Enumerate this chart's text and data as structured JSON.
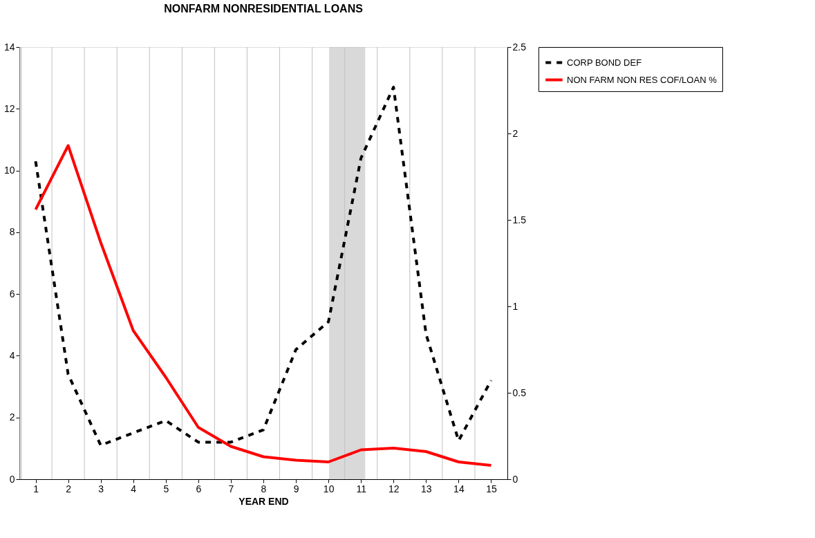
{
  "chart_data": {
    "type": "line",
    "title": "NONFARM NONRESIDENTIAL LOANS",
    "xlabel": "YEAR END",
    "x": [
      1,
      2,
      3,
      4,
      5,
      6,
      7,
      8,
      9,
      10,
      11,
      12,
      13,
      14,
      15
    ],
    "xlim": [
      0.5,
      15.5
    ],
    "xticks": [
      1,
      {
        "value": 1.5,
        "label": null
      },
      2,
      {
        "value": 2.5,
        "label": null
      },
      3,
      {
        "value": 3.5,
        "label": null
      },
      4,
      {
        "value": 4.5,
        "label": null
      },
      5,
      {
        "value": 5.5,
        "label": null
      },
      6,
      {
        "value": 6.5,
        "label": null
      },
      7,
      {
        "value": 7.5,
        "label": null
      },
      8,
      {
        "value": 8.5,
        "label": null
      },
      9,
      {
        "value": 9.5,
        "label": null
      },
      10,
      {
        "value": 10.5,
        "label": null
      },
      11,
      {
        "value": 11.5,
        "label": null
      },
      12,
      {
        "value": 12.5,
        "label": null
      },
      13,
      {
        "value": 13.5,
        "label": null
      },
      14,
      {
        "value": 14.5,
        "label": null
      },
      15
    ],
    "ylim": [
      0,
      14
    ],
    "yticks": [
      0,
      2,
      4,
      6,
      8,
      10,
      12,
      14
    ],
    "y2lim": [
      0,
      2.5
    ],
    "y2ticks": [
      0,
      0.5,
      1,
      1.5,
      2,
      2.5
    ],
    "grid": "x",
    "legend": "right",
    "series": [
      {
        "name": "CORP BOND DEF",
        "color": "#000000",
        "line_style": "dashed",
        "values": [
          10.3,
          3.4,
          1.1,
          1.5,
          1.9,
          1.2,
          1.2,
          1.6,
          4.2,
          5.1,
          10.4,
          12.7,
          4.7,
          1.25,
          3.2
        ]
      },
      {
        "name": "NON FARM NON RES COF/LOAN %",
        "color": "#ff0000",
        "line_style": "solid",
        "axis": "y2",
        "values": [
          1.56,
          1.93,
          1.37,
          0.86,
          0.59,
          0.3,
          0.19,
          0.13,
          0.11,
          0.1,
          0.17,
          0.18,
          0.16,
          0.1,
          0.08
        ]
      }
    ],
    "bands": [
      {
        "axis": "x",
        "from": 0.42,
        "to": 0.58,
        "color": "#c0c0c0"
      },
      {
        "axis": "x",
        "from": 10.02,
        "to": 11.13,
        "color": "#c0c0c0"
      }
    ]
  }
}
